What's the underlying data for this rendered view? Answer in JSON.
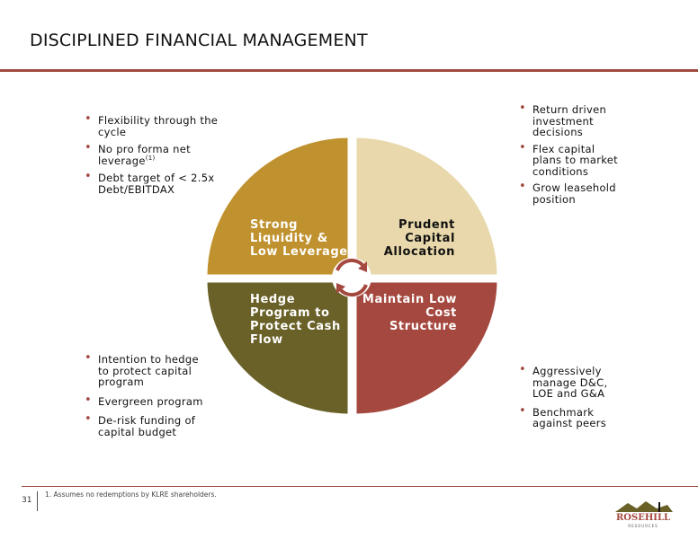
{
  "page": {
    "title": "DISCIPLINED FINANCIAL MANAGEMENT",
    "page_number": "31",
    "footnote": "1.  Assumes no redemptions by KLRE shareholders."
  },
  "colors": {
    "accent": "#a0493f",
    "quadrant_top_left": "#c0922f",
    "quadrant_top_right": "#e8d8ab",
    "quadrant_bottom_left": "#6a6128",
    "quadrant_bottom_right": "#a5483f"
  },
  "quadrants": {
    "top_left": {
      "label": "Strong Liquidity & Low Leverage"
    },
    "top_right": {
      "label": "Prudent Capital Allocation"
    },
    "bottom_left": {
      "label": "Hedge Program to Protect Cash Flow"
    },
    "bottom_right": {
      "label": "Maintain Low Cost Structure"
    }
  },
  "bullets": {
    "top_left": [
      "Flexibility through the cycle",
      "No pro forma net leverage",
      "Debt target of < 2.5x Debt/EBITDAX"
    ],
    "top_left_superscript": "(1)",
    "top_right": [
      "Return driven investment decisions",
      "Flex capital plans to market conditions",
      "Grow leasehold position"
    ],
    "bottom_left": [
      "Intention to hedge to protect capital program",
      "Evergreen program",
      "De-risk funding of capital budget"
    ],
    "bottom_right": [
      "Aggressively manage D&C, LOE and G&A",
      "Benchmark against peers"
    ]
  },
  "logo": {
    "name": "ROSEHILL",
    "tagline": "RESOURCES"
  },
  "icons": {
    "center": "cycle-arrows-icon"
  }
}
